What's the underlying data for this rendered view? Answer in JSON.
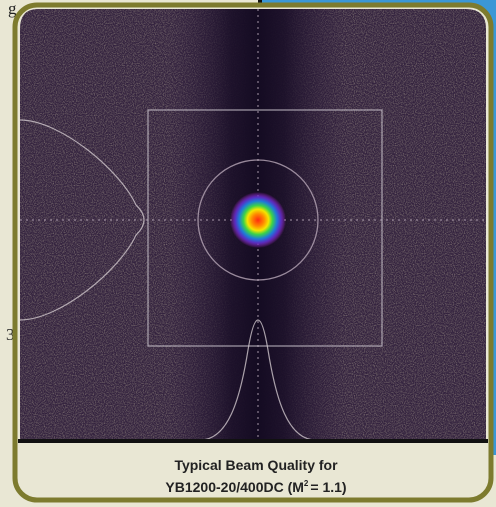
{
  "sidebar": {
    "fragments": [
      "g",
      "3"
    ]
  },
  "caption": {
    "line1": "Typical Beam Quality for",
    "line2_main": "YB1200-20/400DC (M",
    "line2_sup": "2",
    "line2_end": "= 1.1)"
  }
}
